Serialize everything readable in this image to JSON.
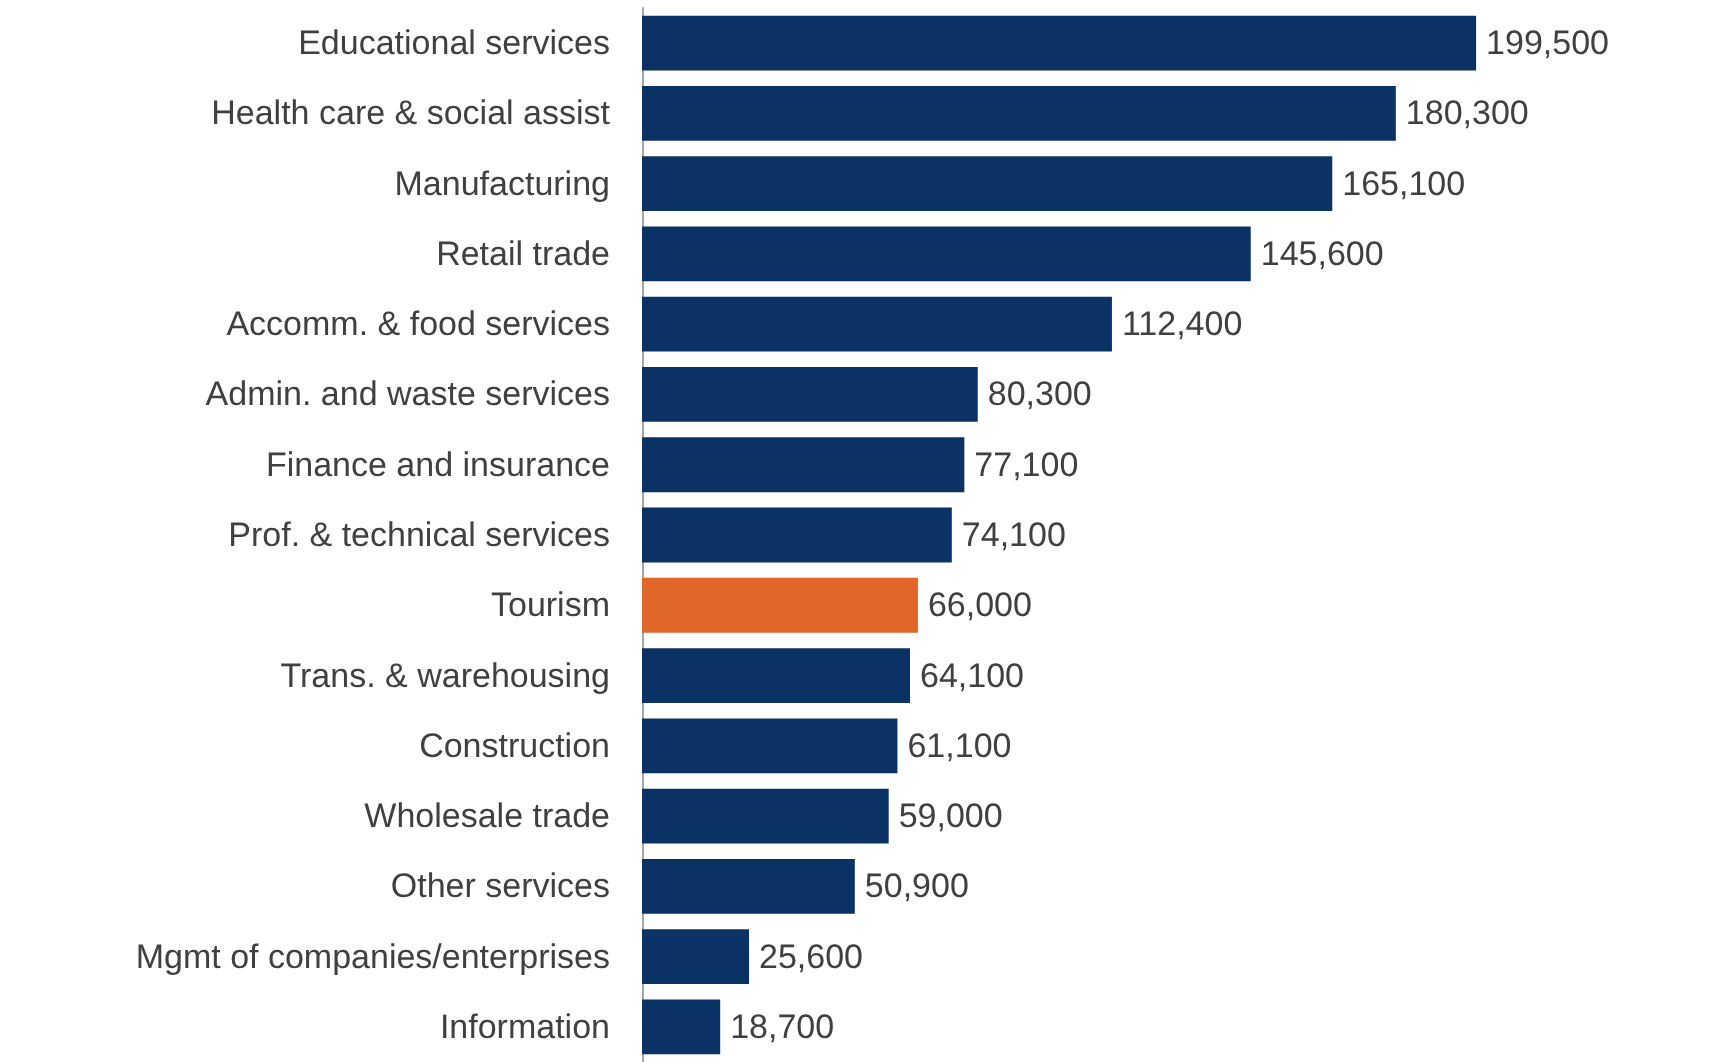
{
  "chart_data": {
    "type": "bar",
    "orientation": "horizontal",
    "categories": [
      "Educational services",
      "Health care & social assist",
      "Manufacturing",
      "Retail trade",
      "Accomm. & food services",
      "Admin. and waste services",
      "Finance and insurance",
      "Prof. & technical services",
      "Tourism",
      "Trans. & warehousing",
      "Construction",
      "Wholesale trade",
      "Other services",
      "Mgmt of companies/enterprises",
      "Information"
    ],
    "values": [
      199500,
      180300,
      165100,
      145600,
      112400,
      80300,
      77100,
      74100,
      66000,
      64100,
      61100,
      59000,
      50900,
      25600,
      18700
    ],
    "value_labels": [
      "199,500",
      "180,300",
      "165,100",
      "145,600",
      "112,400",
      "80,300",
      "77,100",
      "74,100",
      "66,000",
      "64,100",
      "61,100",
      "59,000",
      "50,900",
      "25,600",
      "18,700"
    ],
    "colors": [
      "#0b3264",
      "#0b3264",
      "#0b3264",
      "#0b3264",
      "#0b3264",
      "#0b3264",
      "#0b3264",
      "#0b3264",
      "#e0662a",
      "#0b3264",
      "#0b3264",
      "#0b3264",
      "#0b3264",
      "#0b3264",
      "#0b3264"
    ]
  }
}
